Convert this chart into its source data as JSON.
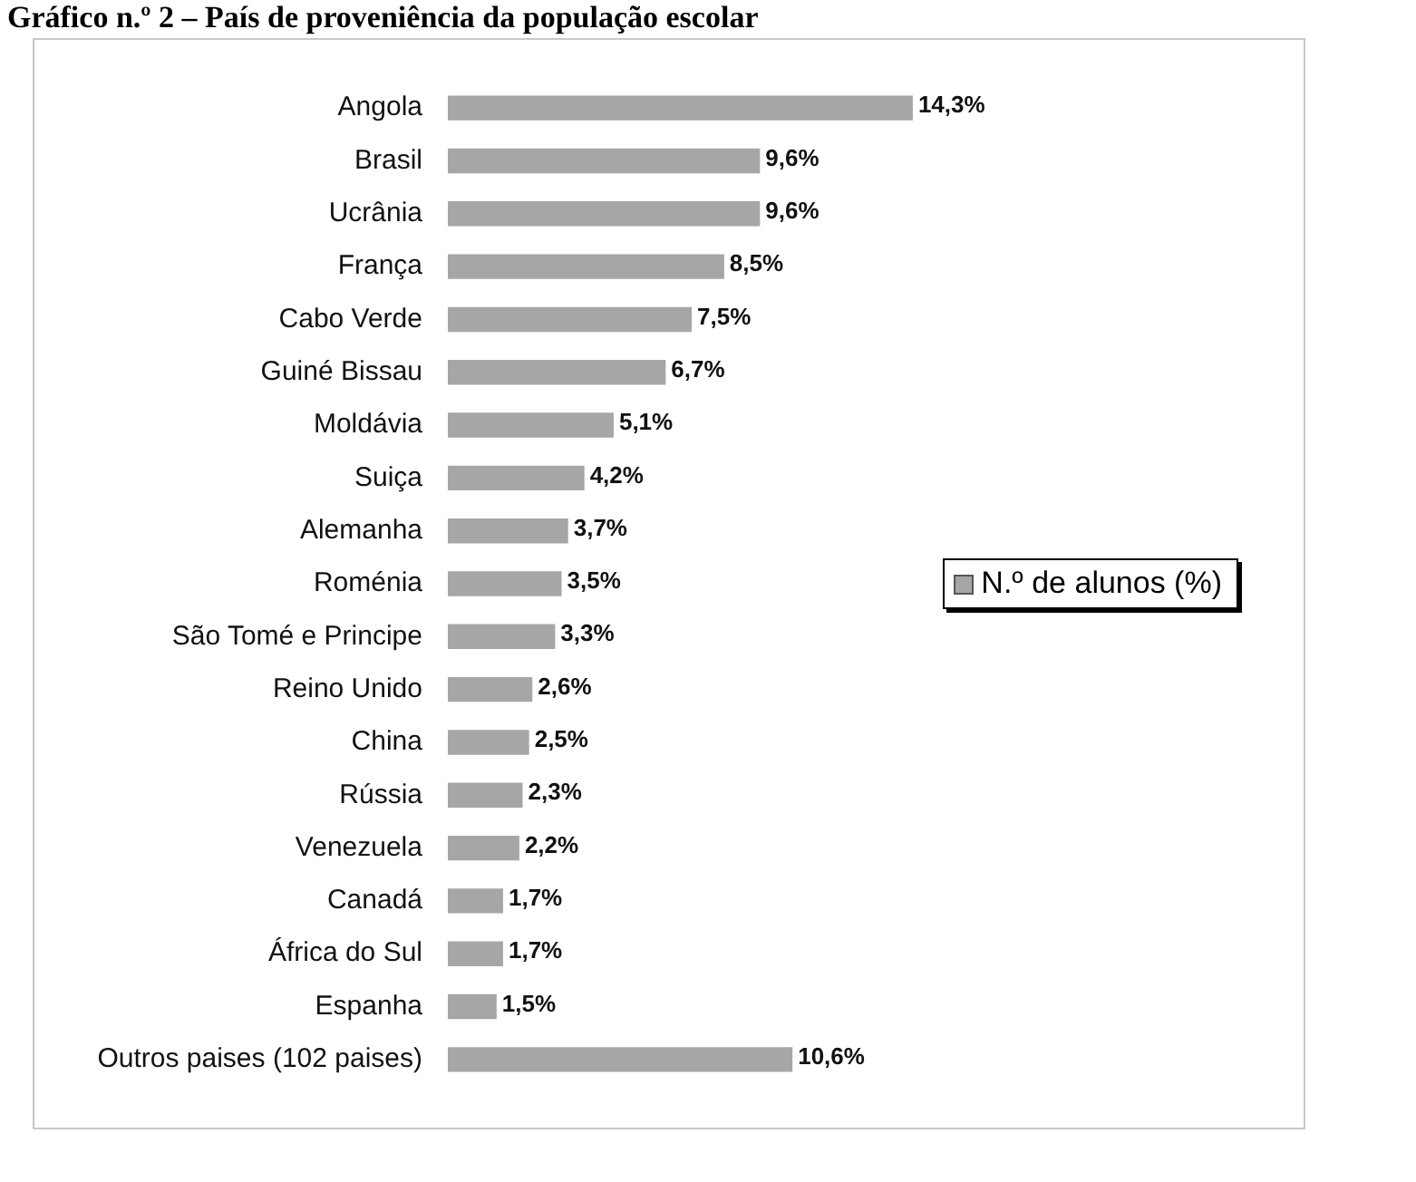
{
  "chart_data": {
    "type": "bar",
    "orientation": "horizontal",
    "title": "Gráfico n.º 2 – País de proveniência da população escolar",
    "categories": [
      "Angola",
      "Brasil",
      "Ucrânia",
      "França",
      "Cabo Verde",
      "Guiné Bissau",
      "Moldávia",
      "Suiça",
      "Alemanha",
      "Roménia",
      "São Tomé e Principe",
      "Reino Unido",
      "China",
      "Rússia",
      "Venezuela",
      "Canadá",
      "África do Sul",
      "Espanha",
      "Outros paises (102 paises)"
    ],
    "series": [
      {
        "name": "N.º de alunos (%)",
        "color": "#a6a6a6",
        "values": [
          14.3,
          9.6,
          9.6,
          8.5,
          7.5,
          6.7,
          5.1,
          4.2,
          3.7,
          3.5,
          3.3,
          2.6,
          2.5,
          2.3,
          2.2,
          1.7,
          1.7,
          1.5,
          10.6
        ],
        "value_labels": [
          "14,3%",
          "9,6%",
          "9,6%",
          "8,5%",
          "7,5%",
          "6,7%",
          "5,1%",
          "4,2%",
          "3,7%",
          "3,5%",
          "3,3%",
          "2,6%",
          "2,5%",
          "2,3%",
          "2,2%",
          "1,7%",
          "1,7%",
          "1,5%",
          "10,6%"
        ]
      }
    ],
    "legend": "right",
    "grid": false,
    "tick_labels": "y"
  }
}
